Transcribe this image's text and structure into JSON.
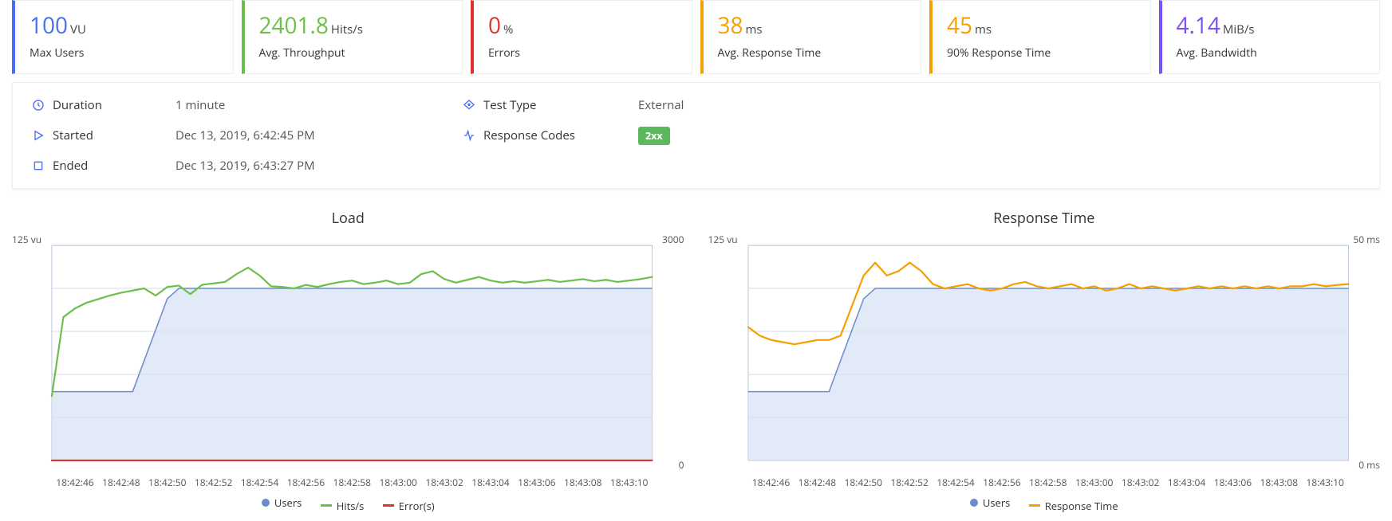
{
  "metrics": [
    {
      "value": "100",
      "unit": "VU",
      "label": "Max Users",
      "accent": "#4a6cf7",
      "valueColor": "#4a6cf7"
    },
    {
      "value": "2401.8",
      "unit": "Hits/s",
      "label": "Avg. Throughput",
      "accent": "#6cc04a",
      "valueColor": "#6cc04a"
    },
    {
      "value": "0",
      "unit": "%",
      "label": "Errors",
      "accent": "#e03131",
      "valueColor": "#e03131"
    },
    {
      "value": "38",
      "unit": "ms",
      "label": "Avg. Response Time",
      "accent": "#f59f00",
      "valueColor": "#f59f00"
    },
    {
      "value": "45",
      "unit": "ms",
      "label": "90% Response Time",
      "accent": "#f59f00",
      "valueColor": "#f59f00"
    },
    {
      "value": "4.14",
      "unit": "MiB/s",
      "label": "Avg. Bandwidth",
      "accent": "#7950f2",
      "valueColor": "#7950f2"
    }
  ],
  "details": {
    "duration_key": "Duration",
    "duration_val": "1 minute",
    "started_key": "Started",
    "started_val": "Dec 13, 2019, 6:42:45 PM",
    "ended_key": "Ended",
    "ended_val": "Dec 13, 2019, 6:43:27 PM",
    "testtype_key": "Test Type",
    "testtype_val": "External",
    "respcodes_key": "Response Codes",
    "respcodes_badge": "2xx"
  },
  "colors": {
    "users": "#6b8cce",
    "users_fill": "#d7e1f4",
    "hits": "#6cc04a",
    "errors": "#e03131",
    "response": "#f59f00",
    "grid": "#d6dde8",
    "border": "#b9c5d9",
    "icon": "#4a6cf7"
  },
  "charts": {
    "xTicks": [
      "18:42:46",
      "18:42:48",
      "18:42:50",
      "18:42:52",
      "18:42:54",
      "18:42:56",
      "18:42:58",
      "18:43:00",
      "18:43:02",
      "18:43:04",
      "18:43:06",
      "18:43:08",
      "18:43:10"
    ],
    "load": {
      "title": "Load",
      "yLeftLabel": "125 vu",
      "yRightTop": "3000",
      "yRightBot": "0",
      "yLeftMax": 125,
      "yRightMax": 3000,
      "users": [
        40,
        40,
        40,
        40,
        40,
        40,
        40,
        40,
        58,
        76,
        94,
        100,
        100,
        100,
        100,
        100,
        100,
        100,
        100,
        100,
        100,
        100,
        100,
        100,
        100,
        100,
        100,
        100,
        100,
        100,
        100,
        100,
        100,
        100,
        100,
        100,
        100,
        100,
        100,
        100,
        100,
        100,
        100,
        100,
        100,
        100,
        100,
        100,
        100,
        100,
        100,
        100,
        100
      ],
      "hits": [
        900,
        2000,
        2120,
        2200,
        2250,
        2300,
        2340,
        2370,
        2400,
        2300,
        2420,
        2440,
        2320,
        2450,
        2470,
        2490,
        2600,
        2690,
        2580,
        2430,
        2420,
        2400,
        2450,
        2420,
        2460,
        2490,
        2510,
        2460,
        2480,
        2510,
        2460,
        2480,
        2600,
        2640,
        2530,
        2480,
        2520,
        2560,
        2510,
        2480,
        2500,
        2480,
        2500,
        2520,
        2490,
        2510,
        2530,
        2500,
        2520,
        2490,
        2510,
        2530,
        2560
      ],
      "errors": [
        0,
        0,
        0,
        0,
        0,
        0,
        0,
        0,
        0,
        0,
        0,
        0,
        0,
        0,
        0,
        0,
        0,
        0,
        0,
        0,
        0,
        0,
        0,
        0,
        0,
        0,
        0,
        0,
        0,
        0,
        0,
        0,
        0,
        0,
        0,
        0,
        0,
        0,
        0,
        0,
        0,
        0,
        0,
        0,
        0,
        0,
        0,
        0,
        0,
        0,
        0,
        0,
        0
      ],
      "legend": {
        "users": "Users",
        "hits": "Hits/s",
        "errors": "Error(s)"
      }
    },
    "response": {
      "title": "Response Time",
      "yLeftLabel": "125 vu",
      "yRightTop": "50 ms",
      "yRightBot": "0 ms",
      "yLeftMax": 125,
      "yRightMax": 50,
      "users": [
        40,
        40,
        40,
        40,
        40,
        40,
        40,
        40,
        58,
        76,
        94,
        100,
        100,
        100,
        100,
        100,
        100,
        100,
        100,
        100,
        100,
        100,
        100,
        100,
        100,
        100,
        100,
        100,
        100,
        100,
        100,
        100,
        100,
        100,
        100,
        100,
        100,
        100,
        100,
        100,
        100,
        100,
        100,
        100,
        100,
        100,
        100,
        100,
        100,
        100,
        100,
        100,
        100
      ],
      "resp": [
        31,
        29,
        28,
        27.5,
        27,
        27.5,
        28,
        28,
        29,
        36,
        43,
        46,
        43,
        44,
        46,
        44,
        41,
        40,
        40.5,
        41,
        40,
        39.5,
        40,
        41,
        41.5,
        40.5,
        40,
        40.5,
        41,
        40,
        40.5,
        39.5,
        40,
        41,
        40,
        40.5,
        40,
        39.5,
        40,
        40.5,
        40,
        40.5,
        40,
        40.5,
        40,
        40.5,
        40,
        40.5,
        40.5,
        41,
        40.5,
        40.8,
        41
      ],
      "legend": {
        "users": "Users",
        "resp": "Response Time"
      }
    }
  }
}
